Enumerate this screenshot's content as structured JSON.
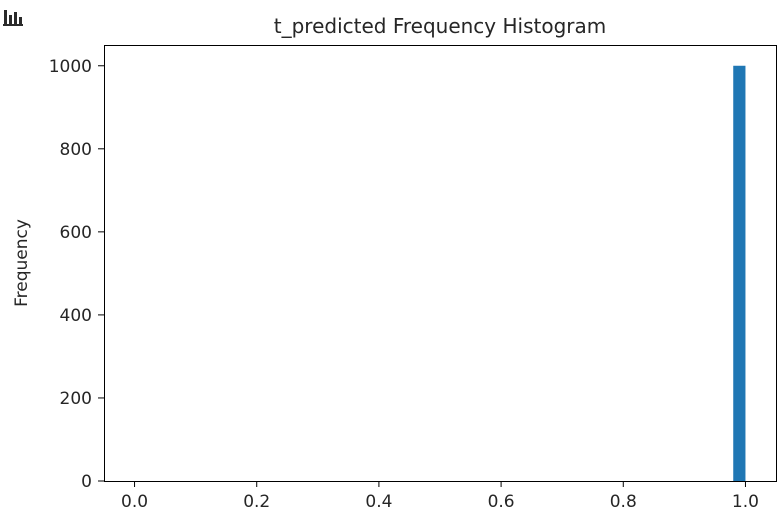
{
  "chart_data": {
    "type": "bar",
    "title": "t_predicted Frequency Histogram",
    "xlabel": "",
    "ylabel": "Frequency",
    "x_ticks": [
      "0.0",
      "0.2",
      "0.4",
      "0.6",
      "0.8",
      "1.0"
    ],
    "y_ticks": [
      "0",
      "200",
      "400",
      "600",
      "800",
      "1000"
    ],
    "xlim": [
      -0.05,
      1.05
    ],
    "ylim": [
      0,
      1050
    ],
    "bins": [
      {
        "x0": 0.98,
        "x1": 1.0,
        "value": 1000
      }
    ],
    "bar_color": "#1f77b4",
    "grid": false
  },
  "toolbar": {
    "icon": "bar-chart-icon"
  }
}
